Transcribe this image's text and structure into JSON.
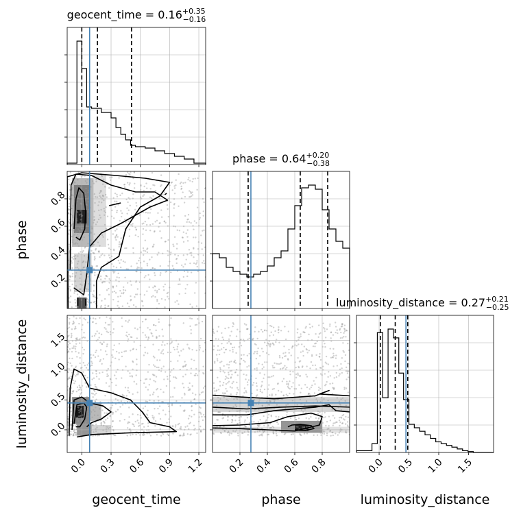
{
  "chart_data": {
    "type": "corner",
    "grid": true,
    "truth_color": "#4682b4",
    "hist_color": "#000000",
    "parameters": [
      {
        "name": "geocent_time",
        "xlabel": "geocent_time",
        "title": {
          "prefix": "geocent_time = 0.16",
          "upper": "+0.35",
          "lower": "−0.16"
        },
        "range": [
          -0.15,
          1.27
        ],
        "ticks": [
          0.0,
          0.3,
          0.6,
          0.9,
          1.2
        ],
        "tick_labels": [
          "0.0",
          "0.3",
          "0.6",
          "0.9",
          "1.2"
        ],
        "quantiles": [
          0.0,
          0.16,
          0.51
        ],
        "truth": 0.08,
        "hist": {
          "bins": [
            -0.15,
            -0.05,
            0.0,
            0.05,
            0.1,
            0.2,
            0.3,
            0.35,
            0.4,
            0.45,
            0.5,
            0.55,
            0.65,
            0.75,
            0.85,
            0.95,
            1.05,
            1.15,
            1.27
          ],
          "counts": [
            0.01,
            0.9,
            0.7,
            0.42,
            0.41,
            0.38,
            0.34,
            0.27,
            0.22,
            0.18,
            0.14,
            0.13,
            0.12,
            0.1,
            0.08,
            0.06,
            0.04,
            0.01
          ]
        }
      },
      {
        "name": "phase",
        "xlabel": "phase",
        "ylabel": "phase",
        "title": {
          "prefix": "phase = 0.64",
          "upper": "+0.20",
          "lower": "−0.38"
        },
        "range": [
          0.0,
          1.0
        ],
        "ticks": [
          0.2,
          0.4,
          0.6,
          0.8
        ],
        "tick_labels": [
          "0.2",
          "0.4",
          "0.6",
          "0.8"
        ],
        "quantiles": [
          0.26,
          0.64,
          0.84
        ],
        "truth": 0.28,
        "hist": {
          "bins": [
            0.0,
            0.05,
            0.1,
            0.15,
            0.2,
            0.25,
            0.3,
            0.35,
            0.4,
            0.45,
            0.5,
            0.55,
            0.6,
            0.65,
            0.7,
            0.75,
            0.8,
            0.85,
            0.9,
            0.95,
            1.0
          ],
          "counts": [
            0.4,
            0.37,
            0.3,
            0.27,
            0.25,
            0.23,
            0.25,
            0.27,
            0.31,
            0.37,
            0.42,
            0.58,
            0.75,
            0.88,
            0.9,
            0.87,
            0.72,
            0.58,
            0.49,
            0.44
          ]
        }
      },
      {
        "name": "luminosity_distance",
        "xlabel": "luminosity_distance",
        "ylabel": "luminosity_distance",
        "title": {
          "prefix": "luminosity_distance = 0.27",
          "upper": "+0.21",
          "lower": "−0.25"
        },
        "range": [
          -0.38,
          1.92
        ],
        "ticks": [
          0.0,
          0.5,
          1.0,
          1.5
        ],
        "tick_labels": [
          "0.0",
          "0.5",
          "1.0",
          "1.5"
        ],
        "quantiles": [
          0.02,
          0.27,
          0.48
        ],
        "truth": 0.45,
        "hist": {
          "bins": [
            -0.38,
            -0.12,
            -0.03,
            0.06,
            0.15,
            0.24,
            0.33,
            0.41,
            0.5,
            0.59,
            0.68,
            0.77,
            0.86,
            0.95,
            1.04,
            1.13,
            1.22,
            1.31,
            1.4,
            1.49,
            1.58,
            1.92
          ],
          "counts": [
            0.01,
            0.05,
            0.68,
            0.31,
            0.7,
            0.65,
            0.45,
            0.3,
            0.16,
            0.14,
            0.12,
            0.1,
            0.08,
            0.06,
            0.05,
            0.04,
            0.03,
            0.02,
            0.01,
            0.005,
            0.0
          ]
        }
      }
    ],
    "panels_2d": [
      {
        "x": "geocent_time",
        "y": "phase",
        "density_cells": [
          {
            "x": [
              -0.05,
              0.05
            ],
            "y": [
              0.62,
              0.72
            ],
            "level": 0.95
          },
          {
            "x": [
              -0.08,
              0.08
            ],
            "y": [
              0.55,
              0.9
            ],
            "level": 0.55
          },
          {
            "x": [
              -0.1,
              0.12
            ],
            "y": [
              0.45,
              0.95
            ],
            "level": 0.3
          },
          {
            "x": [
              0.12,
              0.25
            ],
            "y": [
              0.45,
              0.98
            ],
            "level": 0.14
          },
          {
            "x": [
              -0.08,
              0.1
            ],
            "y": [
              0.12,
              0.4
            ],
            "level": 0.18
          },
          {
            "x": [
              -0.05,
              0.05
            ],
            "y": [
              0.0,
              0.08
            ],
            "level": 0.75
          }
        ],
        "contours": [
          [
            [
              -0.08,
              0.58
            ],
            [
              -0.06,
              0.8
            ],
            [
              -0.03,
              0.88
            ],
            [
              0.02,
              0.84
            ],
            [
              0.04,
              0.7
            ],
            [
              0.03,
              0.58
            ],
            [
              -0.02,
              0.5
            ],
            [
              -0.06,
              0.52
            ]
          ],
          [
            [
              -0.12,
              0.28
            ],
            [
              -0.11,
              0.9
            ],
            [
              -0.06,
              0.98
            ],
            [
              0.1,
              0.97
            ],
            [
              0.3,
              0.9
            ],
            [
              0.55,
              0.85
            ],
            [
              0.75,
              0.85
            ],
            [
              0.88,
              0.79
            ],
            [
              0.7,
              0.74
            ],
            [
              0.4,
              0.62
            ],
            [
              0.2,
              0.55
            ],
            [
              0.08,
              0.45
            ],
            [
              0.05,
              0.25
            ],
            [
              0.02,
              0.1
            ],
            [
              -0.08,
              0.15
            ]
          ],
          [
            [
              -0.14,
              0.0
            ],
            [
              -0.15,
              0.96
            ],
            [
              0.0,
              0.99
            ],
            [
              0.35,
              0.97
            ],
            [
              0.65,
              0.95
            ],
            [
              0.9,
              0.92
            ],
            [
              0.8,
              0.82
            ],
            [
              0.6,
              0.74
            ],
            [
              0.45,
              0.58
            ],
            [
              0.38,
              0.38
            ],
            [
              0.2,
              0.3
            ],
            [
              0.15,
              0.2
            ],
            [
              0.15,
              0.0
            ]
          ]
        ],
        "mini_contours": [
          [
            [
              0.28,
              0.75
            ],
            [
              0.4,
              0.77
            ]
          ],
          [
            [
              0.85,
              0.83
            ],
            [
              0.87,
              0.84
            ]
          ],
          [
            [
              -0.04,
              0.02
            ],
            [
              -0.04,
              0.08
            ]
          ],
          [
            [
              0.04,
              0.02
            ],
            [
              0.04,
              0.07
            ]
          ]
        ]
      },
      {
        "x": "geocent_time",
        "y": "luminosity_distance",
        "density_cells": [
          {
            "x": [
              -0.06,
              0.02
            ],
            "y": [
              0.2,
              0.4
            ],
            "level": 1.0
          },
          {
            "x": [
              -0.1,
              0.08
            ],
            "y": [
              0.1,
              0.55
            ],
            "level": 0.5
          },
          {
            "x": [
              0.08,
              0.2
            ],
            "y": [
              0.15,
              0.45
            ],
            "level": 0.3
          },
          {
            "x": [
              -0.05,
              0.1
            ],
            "y": [
              -0.1,
              0.1
            ],
            "level": 0.45
          },
          {
            "x": [
              0.1,
              0.3
            ],
            "y": [
              -0.08,
              0.08
            ],
            "level": 0.18
          }
        ],
        "contours": [
          [
            [
              -0.08,
              0.1
            ],
            [
              -0.05,
              0.42
            ],
            [
              0.02,
              0.45
            ],
            [
              0.05,
              0.38
            ],
            [
              0.03,
              0.18
            ],
            [
              -0.02,
              0.05
            ],
            [
              -0.06,
              0.05
            ]
          ],
          [
            [
              -0.1,
              0.0
            ],
            [
              -0.08,
              0.5
            ],
            [
              0.0,
              0.55
            ],
            [
              0.08,
              0.45
            ],
            [
              0.22,
              0.4
            ],
            [
              0.3,
              0.3
            ],
            [
              0.2,
              0.18
            ],
            [
              0.1,
              0.12
            ],
            [
              0.05,
              0.05
            ]
          ],
          [
            [
              -0.13,
              -0.1
            ],
            [
              -0.12,
              0.7
            ],
            [
              -0.08,
              1.02
            ],
            [
              0.0,
              0.95
            ],
            [
              0.08,
              0.7
            ],
            [
              0.3,
              0.62
            ],
            [
              0.5,
              0.5
            ],
            [
              0.62,
              0.3
            ],
            [
              0.7,
              0.12
            ],
            [
              0.9,
              0.05
            ],
            [
              0.97,
              -0.03
            ],
            [
              0.5,
              -0.05
            ],
            [
              0.1,
              -0.08
            ],
            [
              -0.05,
              -0.12
            ]
          ]
        ],
        "mini_contours": []
      },
      {
        "x": "phase",
        "y": "luminosity_distance",
        "density_cells": [
          {
            "x": [
              0.6,
              0.7
            ],
            "y": [
              -0.02,
              0.08
            ],
            "level": 0.95
          },
          {
            "x": [
              0.5,
              0.8
            ],
            "y": [
              -0.05,
              0.15
            ],
            "level": 0.45
          },
          {
            "x": [
              0.0,
              1.0
            ],
            "y": [
              0.3,
              0.55
            ],
            "level": 0.18
          },
          {
            "x": [
              0.0,
              1.0
            ],
            "y": [
              -0.05,
              0.05
            ],
            "level": 0.12
          }
        ],
        "contours": [
          [
            [
              0.55,
              0.05
            ],
            [
              0.58,
              0.08
            ],
            [
              0.64,
              0.09
            ],
            [
              0.72,
              0.07
            ],
            [
              0.74,
              0.02
            ],
            [
              0.68,
              -0.01
            ],
            [
              0.6,
              0.0
            ]
          ],
          [
            [
              0.0,
              0.07
            ],
            [
              0.2,
              0.08
            ],
            [
              0.42,
              0.12
            ],
            [
              0.55,
              0.22
            ],
            [
              0.72,
              0.28
            ],
            [
              0.8,
              0.22
            ],
            [
              0.78,
              0.08
            ],
            [
              0.6,
              -0.02
            ],
            [
              0.4,
              0.0
            ],
            [
              0.2,
              0.02
            ],
            [
              0.0,
              0.03
            ]
          ],
          [
            [
              0.0,
              0.25
            ],
            [
              0.25,
              0.25
            ],
            [
              0.45,
              0.32
            ],
            [
              0.75,
              0.38
            ],
            [
              0.85,
              0.42
            ],
            [
              0.9,
              0.32
            ],
            [
              1.0,
              0.3
            ]
          ],
          [
            [
              0.0,
              0.58
            ],
            [
              0.2,
              0.55
            ],
            [
              0.45,
              0.52
            ],
            [
              0.75,
              0.57
            ],
            [
              0.85,
              0.66
            ],
            [
              0.78,
              0.6
            ],
            [
              1.0,
              0.57
            ]
          ],
          [
            [
              0.0,
              0.38
            ],
            [
              0.25,
              0.35
            ],
            [
              0.5,
              0.38
            ],
            [
              0.75,
              0.4
            ],
            [
              1.0,
              0.38
            ]
          ]
        ],
        "mini_contours": []
      }
    ]
  }
}
